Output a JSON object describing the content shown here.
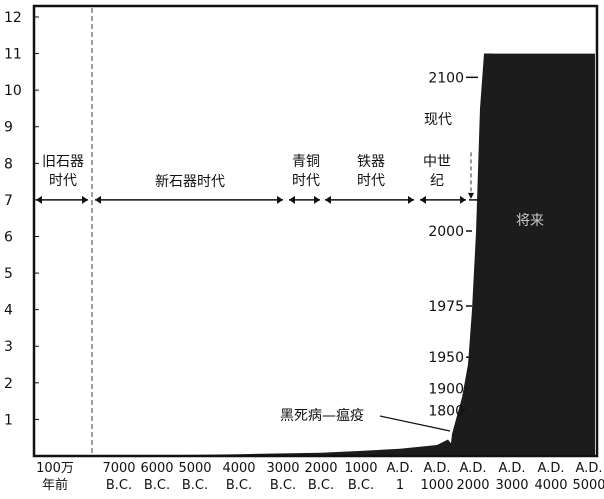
{
  "chart_data": {
    "type": "area",
    "title": "",
    "xlabel": "",
    "ylabel": "",
    "ylim": [
      0,
      12.3
    ],
    "yticks": [
      "1",
      "2",
      "3",
      "4",
      "5",
      "6",
      "7",
      "8",
      "9",
      "10",
      "11",
      "12"
    ],
    "xticks": [
      {
        "top": "100万",
        "bottom": "年前"
      },
      {
        "top": "7000",
        "bottom": "B.C."
      },
      {
        "top": "6000",
        "bottom": "B.C."
      },
      {
        "top": "5000",
        "bottom": "B.C."
      },
      {
        "top": "4000",
        "bottom": "B.C."
      },
      {
        "top": "3000",
        "bottom": "B.C."
      },
      {
        "top": "2000",
        "bottom": "B.C."
      },
      {
        "top": "1000",
        "bottom": "B.C."
      },
      {
        "top": "A.D.",
        "bottom": "1"
      },
      {
        "top": "A.D.",
        "bottom": "1000"
      },
      {
        "top": "A.D.",
        "bottom": "2000"
      },
      {
        "top": "A.D.",
        "bottom": "3000"
      },
      {
        "top": "A.D.",
        "bottom": "4000"
      },
      {
        "top": "A.D.",
        "bottom": "5000"
      }
    ],
    "series": [
      {
        "x": [
          -1000000,
          -7000,
          -6000,
          -5000,
          -4000,
          -3000,
          -2000,
          -1000,
          1,
          1000,
          1348,
          1400,
          1700,
          1800,
          1900,
          1950,
          1975,
          2000,
          2050,
          2100,
          3000,
          5000
        ],
        "values": [
          0.01,
          0.01,
          0.02,
          0.03,
          0.05,
          0.07,
          0.09,
          0.14,
          0.2,
          0.3,
          0.45,
          0.35,
          0.6,
          1.0,
          1.6,
          2.5,
          4.0,
          6.1,
          9.5,
          11.0,
          11.0,
          11.0
        ]
      }
    ],
    "year_labels": [
      "1800",
      "1900",
      "1950",
      "1975",
      "2000",
      "2100"
    ],
    "periods": [
      {
        "lines": [
          "旧石器",
          "时代"
        ]
      },
      {
        "lines": [
          "新石器时代"
        ]
      },
      {
        "lines": [
          "青铜",
          "时代"
        ]
      },
      {
        "lines": [
          "铁器",
          "时代"
        ]
      },
      {
        "lines": [
          "中世",
          "纪"
        ]
      },
      {
        "lines": [
          "现代"
        ]
      }
    ],
    "annotations": {
      "plague": "黑死病—瘟疫",
      "future": "将来"
    },
    "colors": {
      "fill": "#1c1c1c",
      "frame": "#111111",
      "future_text": "#c8c8c8"
    },
    "grid": false,
    "legend": "none"
  }
}
